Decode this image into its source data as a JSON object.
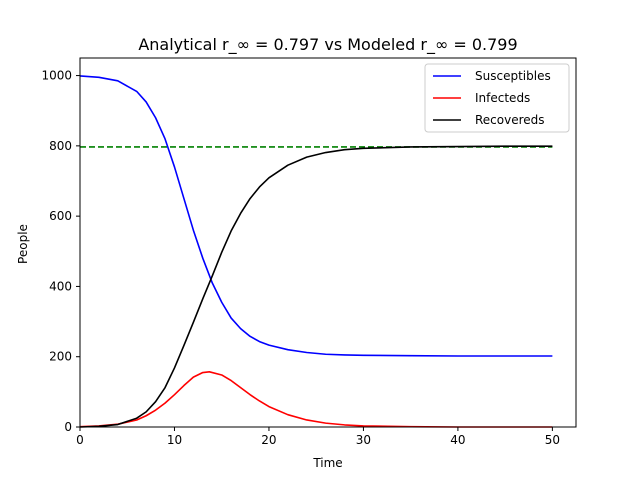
{
  "chart_data": {
    "type": "line",
    "title": "Analytical r_∞ = 0.797 vs Modeled r_∞ = 0.799",
    "xlabel": "Time",
    "ylabel": "People",
    "xlim": [
      0,
      52.5
    ],
    "ylim": [
      0,
      1050
    ],
    "xticks": [
      0,
      10,
      20,
      30,
      40,
      50
    ],
    "yticks": [
      0,
      200,
      400,
      600,
      800,
      1000
    ],
    "grid": false,
    "legend": "top-right",
    "reference_line": {
      "y": 797,
      "color": "#008000",
      "style": "dashed"
    },
    "series": [
      {
        "name": "Susceptibles",
        "color": "#0000ff",
        "x": [
          0,
          2,
          4,
          6,
          7,
          8,
          9,
          10,
          11,
          12,
          13,
          14,
          15,
          16,
          17,
          18,
          19,
          20,
          22,
          24,
          26,
          28,
          30,
          35,
          40,
          45,
          50
        ],
        "y": [
          999,
          995,
          985,
          955,
          925,
          880,
          820,
          740,
          650,
          560,
          480,
          410,
          355,
          310,
          280,
          258,
          243,
          233,
          220,
          212,
          207,
          205,
          204,
          203,
          202,
          202,
          202
        ]
      },
      {
        "name": "Infecteds",
        "color": "#ff0000",
        "x": [
          0,
          2,
          4,
          6,
          7,
          8,
          9,
          10,
          11,
          12,
          13,
          13.7,
          15,
          16,
          17,
          18,
          19,
          20,
          22,
          24,
          26,
          28,
          30,
          35,
          40,
          45,
          50
        ],
        "y": [
          1,
          3,
          8,
          20,
          32,
          48,
          68,
          92,
          118,
          142,
          155,
          157,
          148,
          132,
          112,
          92,
          74,
          58,
          35,
          20,
          11,
          6,
          3,
          1,
          0,
          0,
          0
        ]
      },
      {
        "name": "Recovereds",
        "color": "#000000",
        "x": [
          0,
          2,
          4,
          6,
          7,
          8,
          9,
          10,
          11,
          12,
          13,
          14,
          15,
          16,
          17,
          18,
          19,
          20,
          22,
          24,
          26,
          28,
          30,
          35,
          40,
          45,
          50
        ],
        "y": [
          0,
          2,
          7,
          25,
          43,
          72,
          112,
          168,
          232,
          298,
          365,
          430,
          497,
          558,
          608,
          650,
          683,
          709,
          745,
          768,
          781,
          789,
          793,
          797,
          798,
          799,
          799
        ]
      }
    ]
  }
}
